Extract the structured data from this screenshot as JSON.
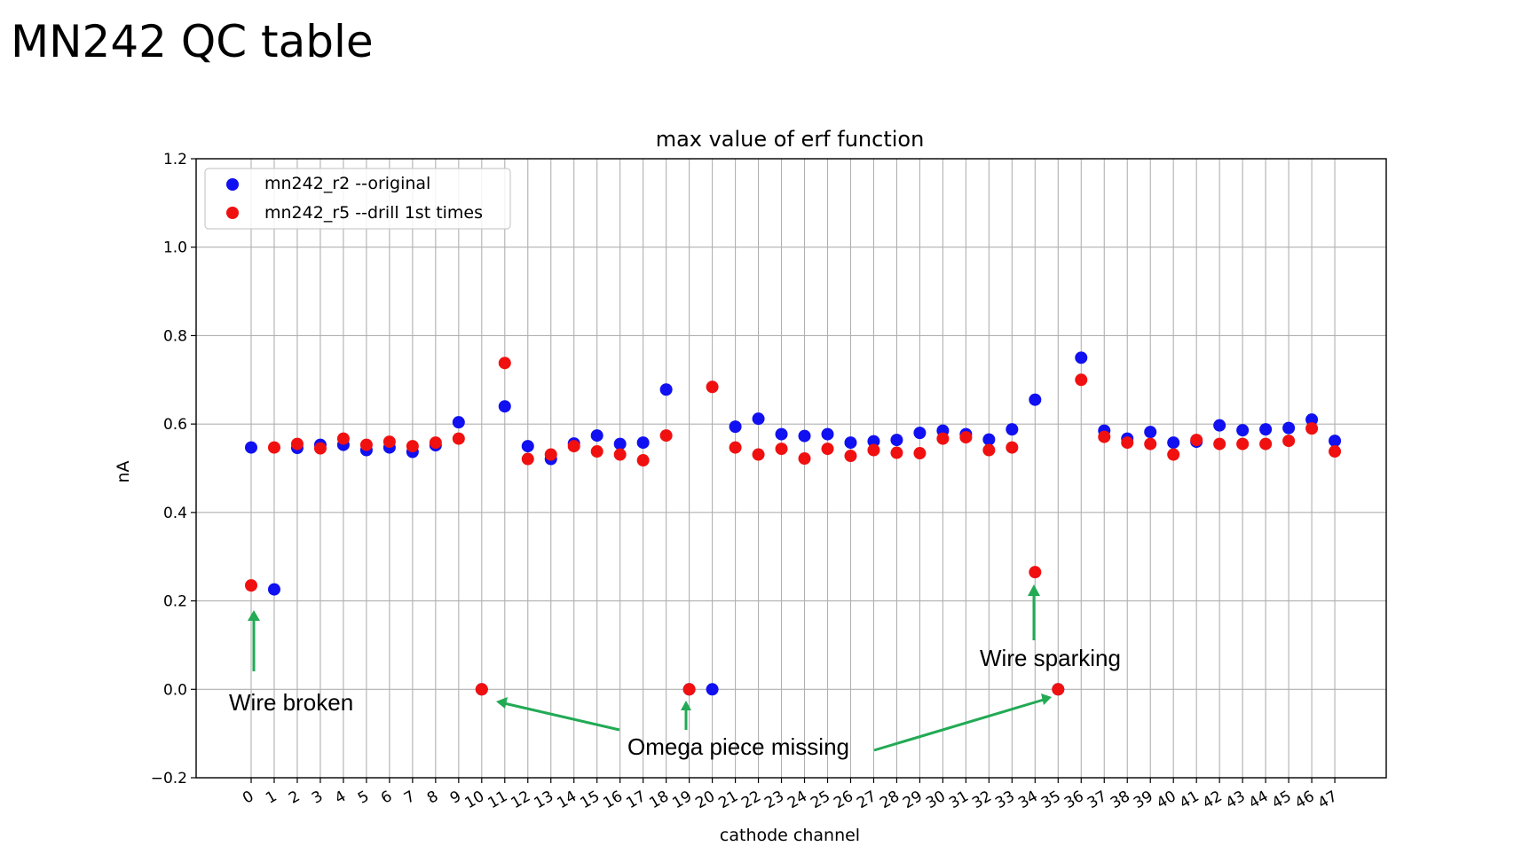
{
  "slide": {
    "title": "MN242 QC table"
  },
  "chart_data": {
    "type": "scatter",
    "title": "max value of erf function",
    "xlabel": "cathode channel",
    "ylabel": "nA",
    "ylim": [
      -0.2,
      1.2
    ],
    "yticks": [
      -0.2,
      0.0,
      0.2,
      0.4,
      0.6,
      0.8,
      1.0,
      1.2
    ],
    "ytick_labels": [
      "−0.2",
      "0.0",
      "0.2",
      "0.4",
      "0.6",
      "0.8",
      "1.0",
      "1.2"
    ],
    "categories": [
      "0",
      "1",
      "2",
      "3",
      "4",
      "5",
      "6",
      "7",
      "8",
      "9",
      "10",
      "11",
      "12",
      "13",
      "14",
      "15",
      "16",
      "17",
      "18",
      "19",
      "20",
      "21",
      "22",
      "23",
      "24",
      "25",
      "26",
      "27",
      "28",
      "29",
      "30",
      "31",
      "32",
      "33",
      "34",
      "35",
      "36",
      "37",
      "38",
      "39",
      "40",
      "41",
      "42",
      "43",
      "44",
      "45",
      "46",
      "47"
    ],
    "grid": true,
    "legend_position": "top-left",
    "series": [
      {
        "name": "mn242_r2 --original",
        "color": "#1010f0",
        "values": [
          0.547,
          0.226,
          0.546,
          0.553,
          0.553,
          0.541,
          0.547,
          0.537,
          0.552,
          0.604,
          0.0,
          0.64,
          0.55,
          0.521,
          0.556,
          0.574,
          0.555,
          0.558,
          0.678,
          0.0,
          0.0,
          0.594,
          0.612,
          0.577,
          0.573,
          0.577,
          0.558,
          0.561,
          0.564,
          0.58,
          0.585,
          0.577,
          0.565,
          0.588,
          0.655,
          0.0,
          0.75,
          0.585,
          0.567,
          0.582,
          0.558,
          0.56,
          0.597,
          0.586,
          0.588,
          0.591,
          0.61,
          0.562
        ]
      },
      {
        "name": "mn242_r5 --drill 1st times",
        "color": "#f01010",
        "values": [
          0.235,
          0.547,
          0.555,
          0.545,
          0.567,
          0.553,
          0.56,
          0.55,
          0.558,
          0.567,
          0.0,
          0.738,
          0.521,
          0.531,
          0.55,
          0.538,
          0.531,
          0.518,
          0.574,
          0.0,
          0.684,
          0.547,
          0.531,
          0.544,
          0.522,
          0.544,
          0.528,
          0.541,
          0.535,
          0.534,
          0.567,
          0.57,
          0.541,
          0.547,
          0.265,
          0.0,
          0.7,
          0.571,
          0.558,
          0.555,
          0.531,
          0.564,
          0.555,
          0.555,
          0.555,
          0.562,
          0.59,
          0.538
        ]
      }
    ],
    "annotations": [
      {
        "text": "Wire broken",
        "target_channels": [
          0
        ],
        "target_value": 0.235
      },
      {
        "text": "Omega piece missing",
        "target_channels": [
          10,
          19,
          35
        ],
        "target_value": 0.0
      },
      {
        "text": "Wire sparking",
        "target_channels": [
          34
        ],
        "target_value": 0.265
      }
    ],
    "annotation_color": "#22aa55"
  }
}
